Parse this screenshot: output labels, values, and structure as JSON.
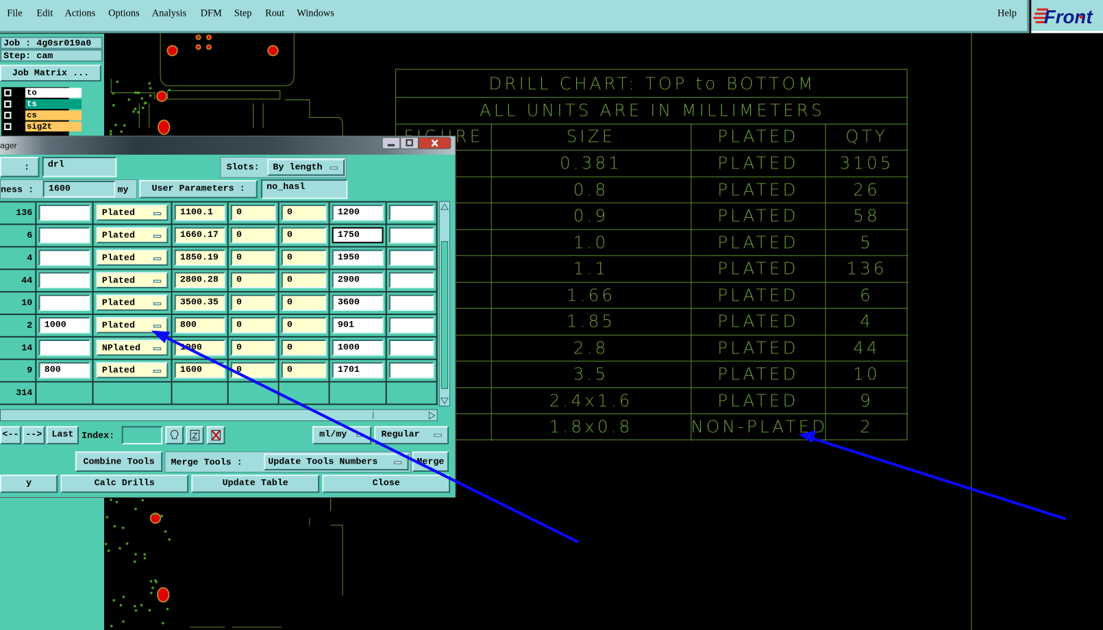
{
  "menu": {
    "items": [
      {
        "label": "File"
      },
      {
        "label": "Edit"
      },
      {
        "label": "Actions"
      },
      {
        "label": "Options"
      },
      {
        "label": "Analysis"
      },
      {
        "label": "DFM"
      },
      {
        "label": "Step"
      },
      {
        "label": "Rout"
      },
      {
        "label": "Windows"
      }
    ],
    "help": "Help",
    "logo": "Front"
  },
  "job": {
    "job": "Job : 4g0sr019a0",
    "step": "Step: cam",
    "matrix_button": "Job Matrix ...",
    "layers": [
      {
        "name": "to",
        "color": "#ffffff"
      },
      {
        "name": "ts",
        "color": "#00a080"
      },
      {
        "name": "cs",
        "color": "#ffc860"
      },
      {
        "name": "sig2t",
        "color": "#ffc860"
      }
    ]
  },
  "dialog": {
    "title": "ager",
    "layer_label": ":",
    "layer_value": "drl",
    "slots_label": "Slots:",
    "slots_value": "By length",
    "thickness_label": "ness :",
    "thickness_value": "1600",
    "thickness_unit": "my",
    "user_params_button": "User Parameters :",
    "user_params_value": "no_hasl",
    "rows": [
      {
        "count": "136",
        "c1": "",
        "type": "Plated",
        "finish": "1100.1",
        "p": "0",
        "m": "0",
        "drill": "1200",
        "c7": ""
      },
      {
        "count": "6",
        "c1": "",
        "type": "Plated",
        "finish": "1660.17",
        "p": "0",
        "m": "0",
        "drill": "1750",
        "c7": ""
      },
      {
        "count": "4",
        "c1": "",
        "type": "Plated",
        "finish": "1850.19",
        "p": "0",
        "m": "0",
        "drill": "1950",
        "c7": ""
      },
      {
        "count": "44",
        "c1": "",
        "type": "Plated",
        "finish": "2800.28",
        "p": "0",
        "m": "0",
        "drill": "2900",
        "c7": ""
      },
      {
        "count": "10",
        "c1": "",
        "type": "Plated",
        "finish": "3500.35",
        "p": "0",
        "m": "0",
        "drill": "3600",
        "c7": ""
      },
      {
        "count": "2",
        "c1": "1000",
        "type": "Plated",
        "finish": "800",
        "p": "0",
        "m": "0",
        "drill": "901",
        "c7": ""
      },
      {
        "count": "14",
        "c1": "",
        "type": "NPlated",
        "finish": "1000",
        "p": "0",
        "m": "0",
        "drill": "1000",
        "c7": ""
      },
      {
        "count": "9",
        "c1": "800",
        "type": "Plated",
        "finish": "1600",
        "p": "0",
        "m": "0",
        "drill": "1701",
        "c7": ""
      }
    ],
    "total": "314",
    "prev": "<--",
    "next": "-->",
    "last": "Last",
    "index_label": "Index:",
    "index_value": "",
    "units": "ml/my",
    "mode": "Regular",
    "combine": "Combine Tools",
    "merge_label": "Merge Tools :",
    "merge_value": "Update Tools Numbers",
    "merge_button": "Merge",
    "apply": "y",
    "calc": "Calc Drills",
    "update": "Update Table",
    "close": "Close"
  },
  "drill_chart": {
    "title": "DRILL CHART: TOP to BOTTOM",
    "subtitle": "ALL UNITS ARE IN MILLIMETERS",
    "headers": [
      "FIGURE",
      "SIZE",
      "PLATED",
      "QTY"
    ],
    "rows": [
      [
        "0.381",
        "PLATED",
        "3105"
      ],
      [
        "0.8",
        "PLATED",
        "26"
      ],
      [
        "0.9",
        "PLATED",
        "58"
      ],
      [
        "1.0",
        "PLATED",
        "5"
      ],
      [
        "1.1",
        "PLATED",
        "136"
      ],
      [
        "1.66",
        "PLATED",
        "6"
      ],
      [
        "1.85",
        "PLATED",
        "4"
      ],
      [
        "2.8",
        "PLATED",
        "44"
      ],
      [
        "3.5",
        "PLATED",
        "10"
      ],
      [
        "2.4x1.6",
        "PLATED",
        "9"
      ],
      [
        "1.8x0.8",
        "NON-PLATED",
        "2"
      ]
    ]
  },
  "colors": {
    "menubar": "#a3dcdc",
    "panel": "#52ccb0",
    "chart_line": "#5e8f2a",
    "arrow": "#0000ff"
  }
}
